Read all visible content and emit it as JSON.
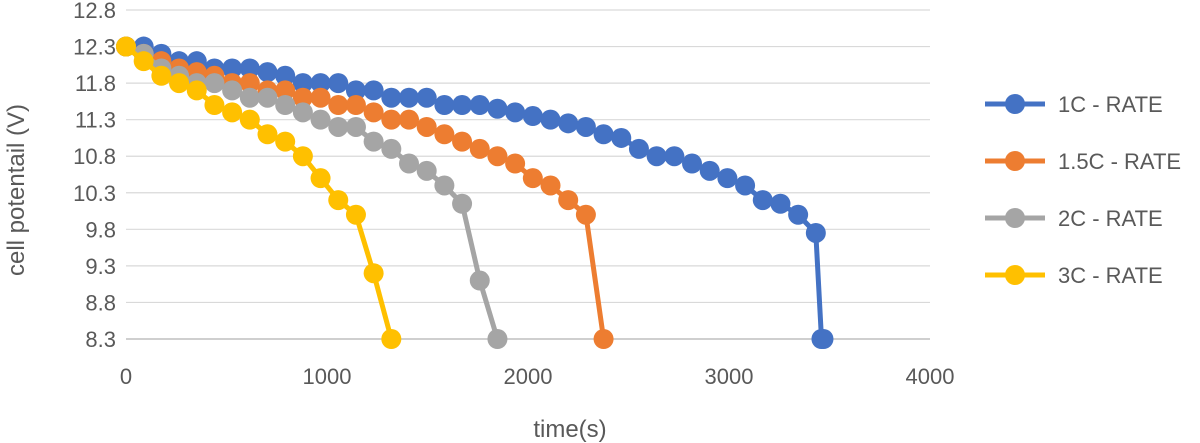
{
  "chart_data": {
    "type": "line",
    "title": "",
    "xlabel": "time(s)",
    "ylabel": "cell potentail (V)",
    "xlim": [
      0,
      4000
    ],
    "ylim": [
      8.3,
      12.8
    ],
    "xticks": [
      0,
      1000,
      2000,
      3000,
      4000
    ],
    "yticks": [
      8.3,
      8.8,
      9.3,
      9.8,
      10.3,
      10.8,
      11.3,
      11.8,
      12.3,
      12.8
    ],
    "xtick_labels": [
      "0",
      "1000",
      "2000",
      "3000",
      "4000"
    ],
    "ytick_labels": [
      "8.3",
      "8.8",
      "9.3",
      "9.8",
      "10.3",
      "10.8",
      "11.3",
      "11.8",
      "12.3",
      "12.8"
    ],
    "grid": "horizontal",
    "legend": "right",
    "series": [
      {
        "name": "1C - RATE",
        "color": "#4472c4",
        "x": [
          0,
          88,
          176,
          264,
          352,
          440,
          528,
          616,
          704,
          792,
          880,
          968,
          1056,
          1144,
          1232,
          1320,
          1408,
          1496,
          1584,
          1672,
          1760,
          1848,
          1936,
          2024,
          2112,
          2200,
          2288,
          2376,
          2464,
          2552,
          2640,
          2728,
          2816,
          2904,
          2992,
          3080,
          3168,
          3256,
          3344,
          3432,
          3460,
          3470
        ],
        "y": [
          12.3,
          12.3,
          12.2,
          12.1,
          12.1,
          12.0,
          12.0,
          12.0,
          11.95,
          11.9,
          11.8,
          11.8,
          11.8,
          11.7,
          11.7,
          11.6,
          11.6,
          11.6,
          11.5,
          11.5,
          11.5,
          11.45,
          11.4,
          11.35,
          11.3,
          11.25,
          11.2,
          11.1,
          11.05,
          10.9,
          10.8,
          10.8,
          10.7,
          10.6,
          10.5,
          10.4,
          10.2,
          10.15,
          10.0,
          9.75,
          8.3,
          8.3
        ]
      },
      {
        "name": "1.5C - RATE",
        "color": "#ed7d31",
        "x": [
          0,
          88,
          176,
          264,
          352,
          440,
          528,
          616,
          704,
          792,
          880,
          968,
          1056,
          1144,
          1232,
          1320,
          1408,
          1496,
          1584,
          1672,
          1760,
          1848,
          1936,
          2024,
          2112,
          2200,
          2288,
          2376
        ],
        "y": [
          12.3,
          12.2,
          12.1,
          12.0,
          11.95,
          11.9,
          11.8,
          11.8,
          11.7,
          11.7,
          11.6,
          11.6,
          11.5,
          11.5,
          11.4,
          11.3,
          11.3,
          11.2,
          11.1,
          11.0,
          10.9,
          10.8,
          10.7,
          10.5,
          10.4,
          10.2,
          10.0,
          8.3
        ]
      },
      {
        "name": "2C - RATE",
        "color": "#a5a5a5",
        "x": [
          0,
          88,
          176,
          264,
          352,
          440,
          528,
          616,
          704,
          792,
          880,
          968,
          1056,
          1144,
          1232,
          1320,
          1408,
          1496,
          1584,
          1672,
          1760,
          1848
        ],
        "y": [
          12.3,
          12.2,
          12.0,
          11.9,
          11.8,
          11.8,
          11.7,
          11.6,
          11.6,
          11.5,
          11.4,
          11.3,
          11.2,
          11.2,
          11.0,
          10.9,
          10.7,
          10.6,
          10.4,
          10.15,
          9.1,
          8.3
        ]
      },
      {
        "name": "3C - RATE",
        "color": "#ffc000",
        "x": [
          0,
          88,
          176,
          264,
          352,
          440,
          528,
          616,
          704,
          792,
          880,
          968,
          1056,
          1144,
          1232,
          1320
        ],
        "y": [
          12.3,
          12.1,
          11.9,
          11.8,
          11.7,
          11.5,
          11.4,
          11.3,
          11.1,
          11.0,
          10.8,
          10.5,
          10.2,
          10.0,
          9.2,
          8.3
        ]
      }
    ]
  }
}
